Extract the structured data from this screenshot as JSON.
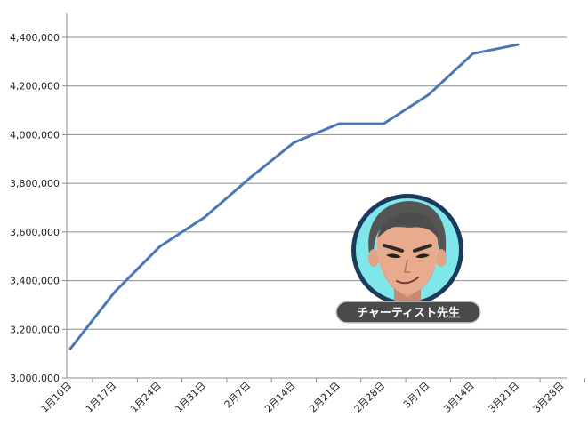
{
  "chart_data": {
    "type": "line",
    "categories": [
      "1月10日",
      "1月17日",
      "1月24日",
      "1月31日",
      "2月7日",
      "2月14日",
      "2月21日",
      "2月28日",
      "3月7日",
      "3月14日",
      "3月21日",
      "3月28日"
    ],
    "series": [
      {
        "values": [
          3120000,
          3355000,
          3540000,
          3660000,
          3820000,
          3968000,
          4045000,
          4045000,
          4163000,
          4333000,
          4370000,
          null
        ]
      }
    ],
    "yticks": [
      "3,000,000",
      "3,200,000",
      "3,400,000",
      "3,600,000",
      "3,800,000",
      "4,000,000",
      "4,200,000",
      "4,400,000"
    ],
    "ylim": [
      3000000,
      4500000
    ],
    "grid": true,
    "line_color": "#4a78b5"
  },
  "mascot": {
    "name_label": "チャーティスト先生",
    "icon": "teacher-avatar-icon",
    "ring_color": "#1b3a5c",
    "bg_color": "#7fe6ea"
  }
}
